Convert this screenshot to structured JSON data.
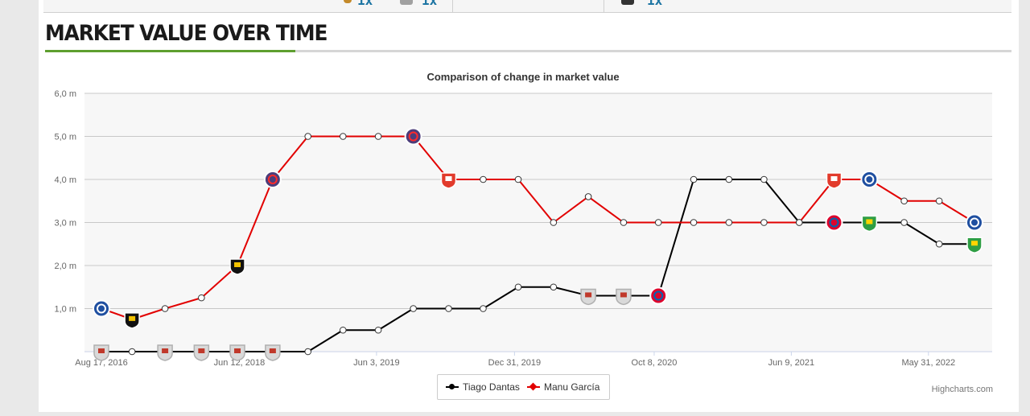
{
  "top_strip": {
    "counts": [
      "1x",
      "1x",
      "1x"
    ]
  },
  "section": {
    "title": "MARKET VALUE OVER TIME",
    "accent_color": "#5e9f2f"
  },
  "credits": "Highcharts.com",
  "chart_data": {
    "type": "line",
    "title": "Comparison of change in market value",
    "ylim": [
      0,
      6
    ],
    "y_ticks": [
      "6,0 m",
      "5,0 m",
      "4,0 m",
      "3,0 m",
      "2,0 m",
      "1,0 m"
    ],
    "x_ticks": [
      "Aug 17, 2016",
      "Jun 12, 2018",
      "Jun 3, 2019",
      "Dec 31, 2019",
      "Oct 8, 2020",
      "Jun 9, 2021",
      "May 31, 2022"
    ],
    "grid": true,
    "legend_position": "bottom-center",
    "series": [
      {
        "name": "Tiago Dantas",
        "color": "#000000",
        "marker": "circle",
        "points": [
          {
            "x": "2016-08-17",
            "y": 0.0,
            "badge": "benfica"
          },
          {
            "x": "2016-12-28",
            "y": 0.0
          },
          {
            "x": "2017-05-20",
            "y": 0.0,
            "badge": "benfica"
          },
          {
            "x": "2017-10-25",
            "y": 0.0,
            "badge": "benfica"
          },
          {
            "x": "2018-03-30",
            "y": 0.0,
            "badge": "benfica"
          },
          {
            "x": "2018-08-30",
            "y": 0.0,
            "badge": "benfica"
          },
          {
            "x": "2019-01-30",
            "y": 0.0
          },
          {
            "x": "2019-07-01",
            "y": 0.5
          },
          {
            "x": "2019-12-01",
            "y": 0.5
          },
          {
            "x": "2020-05-01",
            "y": 1.0
          },
          {
            "x": "2020-10-01",
            "y": 1.0
          },
          {
            "x": "2021-02-28",
            "y": 1.0
          },
          {
            "x": "2021-07-30",
            "y": 1.5
          },
          {
            "x": "2021-12-30",
            "y": 1.5
          },
          {
            "x": "2022-05-30",
            "y": 1.3,
            "badge": "benfica"
          },
          {
            "x": "2022-10-30",
            "y": 1.3,
            "badge": "benfica"
          },
          {
            "x": "2023-03-30",
            "y": 1.3,
            "badge": "bayern"
          },
          {
            "x": "2023-08-30",
            "y": 4.0
          },
          {
            "x": "2024-01-30",
            "y": 4.0
          },
          {
            "x": "2024-06-30",
            "y": 4.0
          },
          {
            "x": "2024-11-30",
            "y": 3.0
          },
          {
            "x": "2025-04-30",
            "y": 3.0,
            "badge": "bayern"
          },
          {
            "x": "2025-09-30",
            "y": 3.0,
            "badge": "tondela"
          },
          {
            "x": "2026-02-28",
            "y": 3.0
          },
          {
            "x": "2026-07-30",
            "y": 2.5
          },
          {
            "x": "2026-12-30",
            "y": 2.5,
            "badge": "tondela"
          }
        ]
      },
      {
        "name": "Manu García",
        "color": "#e20000",
        "marker": "diamond",
        "points": [
          {
            "x": "2016-08-17",
            "y": 1.0,
            "badge": "alaves"
          },
          {
            "x": "2016-12-28",
            "y": 0.75,
            "badge": "nac"
          },
          {
            "x": "2017-05-20",
            "y": 1.0
          },
          {
            "x": "2017-10-25",
            "y": 1.25
          },
          {
            "x": "2018-03-30",
            "y": 2.0,
            "badge": "nac"
          },
          {
            "x": "2018-08-30",
            "y": 4.0,
            "badge": "toulouse"
          },
          {
            "x": "2019-01-30",
            "y": 5.0
          },
          {
            "x": "2019-07-01",
            "y": 5.0
          },
          {
            "x": "2019-12-01",
            "y": 5.0
          },
          {
            "x": "2020-05-01",
            "y": 5.0,
            "badge": "toulouse"
          },
          {
            "x": "2020-10-01",
            "y": 4.0,
            "badge": "gijon"
          },
          {
            "x": "2021-02-28",
            "y": 4.0
          },
          {
            "x": "2021-07-30",
            "y": 4.0
          },
          {
            "x": "2021-12-30",
            "y": 3.0
          },
          {
            "x": "2022-05-30",
            "y": 3.6
          },
          {
            "x": "2022-10-30",
            "y": 3.0
          },
          {
            "x": "2023-03-30",
            "y": 3.0
          },
          {
            "x": "2023-08-30",
            "y": 3.0
          },
          {
            "x": "2024-01-30",
            "y": 3.0
          },
          {
            "x": "2024-06-30",
            "y": 3.0
          },
          {
            "x": "2024-11-30",
            "y": 3.0
          },
          {
            "x": "2025-04-30",
            "y": 4.0,
            "badge": "gijon"
          },
          {
            "x": "2025-09-30",
            "y": 4.0,
            "badge": "alaves"
          },
          {
            "x": "2026-02-28",
            "y": 3.5
          },
          {
            "x": "2026-07-30",
            "y": 3.5
          },
          {
            "x": "2026-12-30",
            "y": 3.0,
            "badge": "alaves"
          }
        ]
      }
    ]
  }
}
